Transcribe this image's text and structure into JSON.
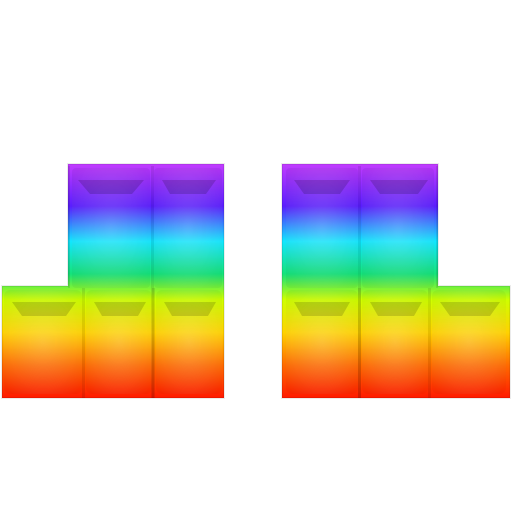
{
  "scene": {
    "background": "#ffffff",
    "gradient_stops": [
      "#c23cff",
      "#5a1dff",
      "#12e6ff",
      "#14e37a",
      "#cfff00",
      "#ffd200",
      "#ff6a00",
      "#ff1a00"
    ],
    "shape_left": {
      "label": "left-block-shape"
    },
    "shape_right": {
      "label": "right-block-shape"
    }
  }
}
